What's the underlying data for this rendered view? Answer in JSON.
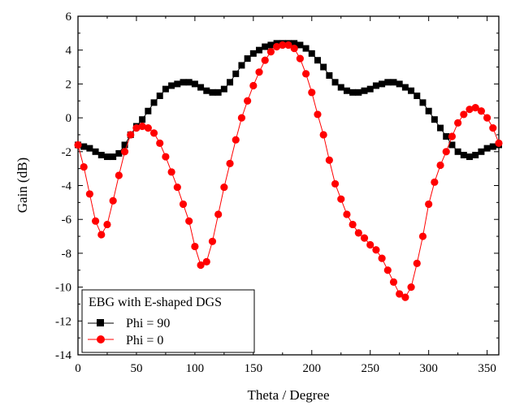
{
  "chart_data": {
    "type": "line",
    "xlabel": "Theta / Degree",
    "ylabel": "Gain (dB)",
    "xlim": [
      0,
      360
    ],
    "ylim": [
      -14,
      6
    ],
    "x_ticks": [
      "0",
      "50",
      "100",
      "150",
      "200",
      "250",
      "300",
      "350"
    ],
    "y_ticks": [
      "6",
      "4",
      "2",
      "0",
      "-2",
      "-4",
      "-6",
      "-8",
      "-10",
      "-12",
      "-14"
    ],
    "grid": false,
    "legend": {
      "title": "EBG with E-shaped DGS",
      "placement": "bottom-left"
    },
    "series": [
      {
        "name": "Phi = 90",
        "color": "#000000",
        "marker": "square",
        "x": [
          0,
          5,
          10,
          15,
          20,
          25,
          30,
          35,
          40,
          45,
          50,
          55,
          60,
          65,
          70,
          75,
          80,
          85,
          90,
          95,
          100,
          105,
          110,
          115,
          120,
          125,
          130,
          135,
          140,
          145,
          150,
          155,
          160,
          165,
          170,
          175,
          180,
          185,
          190,
          195,
          200,
          205,
          210,
          215,
          220,
          225,
          230,
          235,
          240,
          245,
          250,
          255,
          260,
          265,
          270,
          275,
          280,
          285,
          290,
          295,
          300,
          305,
          310,
          315,
          320,
          325,
          330,
          335,
          340,
          345,
          350,
          355,
          360
        ],
        "y": [
          -1.6,
          -1.7,
          -1.8,
          -2.0,
          -2.2,
          -2.3,
          -2.3,
          -2.1,
          -1.6,
          -1.0,
          -0.5,
          -0.1,
          0.4,
          0.9,
          1.3,
          1.7,
          1.9,
          2.0,
          2.1,
          2.1,
          2.0,
          1.8,
          1.6,
          1.5,
          1.5,
          1.7,
          2.1,
          2.6,
          3.1,
          3.5,
          3.8,
          4.0,
          4.2,
          4.3,
          4.4,
          4.4,
          4.4,
          4.4,
          4.3,
          4.1,
          3.8,
          3.4,
          3.0,
          2.5,
          2.1,
          1.8,
          1.6,
          1.5,
          1.5,
          1.6,
          1.7,
          1.9,
          2.0,
          2.1,
          2.1,
          2.0,
          1.8,
          1.6,
          1.3,
          0.9,
          0.4,
          -0.1,
          -0.6,
          -1.1,
          -1.6,
          -2.0,
          -2.2,
          -2.3,
          -2.2,
          -2.0,
          -1.8,
          -1.7,
          -1.6
        ]
      },
      {
        "name": "Phi = 0",
        "color": "#ff0000",
        "marker": "circle",
        "x": [
          0,
          5,
          10,
          15,
          20,
          25,
          30,
          35,
          40,
          45,
          50,
          55,
          60,
          65,
          70,
          75,
          80,
          85,
          90,
          95,
          100,
          105,
          110,
          115,
          120,
          125,
          130,
          135,
          140,
          145,
          150,
          155,
          160,
          165,
          170,
          175,
          180,
          185,
          190,
          195,
          200,
          205,
          210,
          215,
          220,
          225,
          230,
          235,
          240,
          245,
          250,
          255,
          260,
          265,
          270,
          275,
          280,
          285,
          290,
          295,
          300,
          305,
          310,
          315,
          320,
          325,
          330,
          335,
          340,
          345,
          350,
          355,
          360
        ],
        "y": [
          -1.6,
          -2.9,
          -4.5,
          -6.1,
          -6.9,
          -6.3,
          -4.9,
          -3.4,
          -2.0,
          -1.0,
          -0.6,
          -0.5,
          -0.6,
          -0.9,
          -1.5,
          -2.3,
          -3.2,
          -4.1,
          -5.1,
          -6.1,
          -7.6,
          -8.7,
          -8.5,
          -7.3,
          -5.7,
          -4.1,
          -2.7,
          -1.3,
          0.0,
          1.0,
          1.9,
          2.7,
          3.4,
          3.9,
          4.2,
          4.3,
          4.3,
          4.1,
          3.5,
          2.6,
          1.5,
          0.2,
          -1.0,
          -2.5,
          -3.9,
          -4.8,
          -5.7,
          -6.3,
          -6.8,
          -7.1,
          -7.5,
          -7.8,
          -8.3,
          -9.0,
          -9.7,
          -10.4,
          -10.6,
          -10.0,
          -8.6,
          -7.0,
          -5.1,
          -3.8,
          -2.8,
          -2.0,
          -1.1,
          -0.3,
          0.2,
          0.5,
          0.6,
          0.4,
          0.0,
          -0.6,
          -1.5
        ]
      }
    ]
  }
}
